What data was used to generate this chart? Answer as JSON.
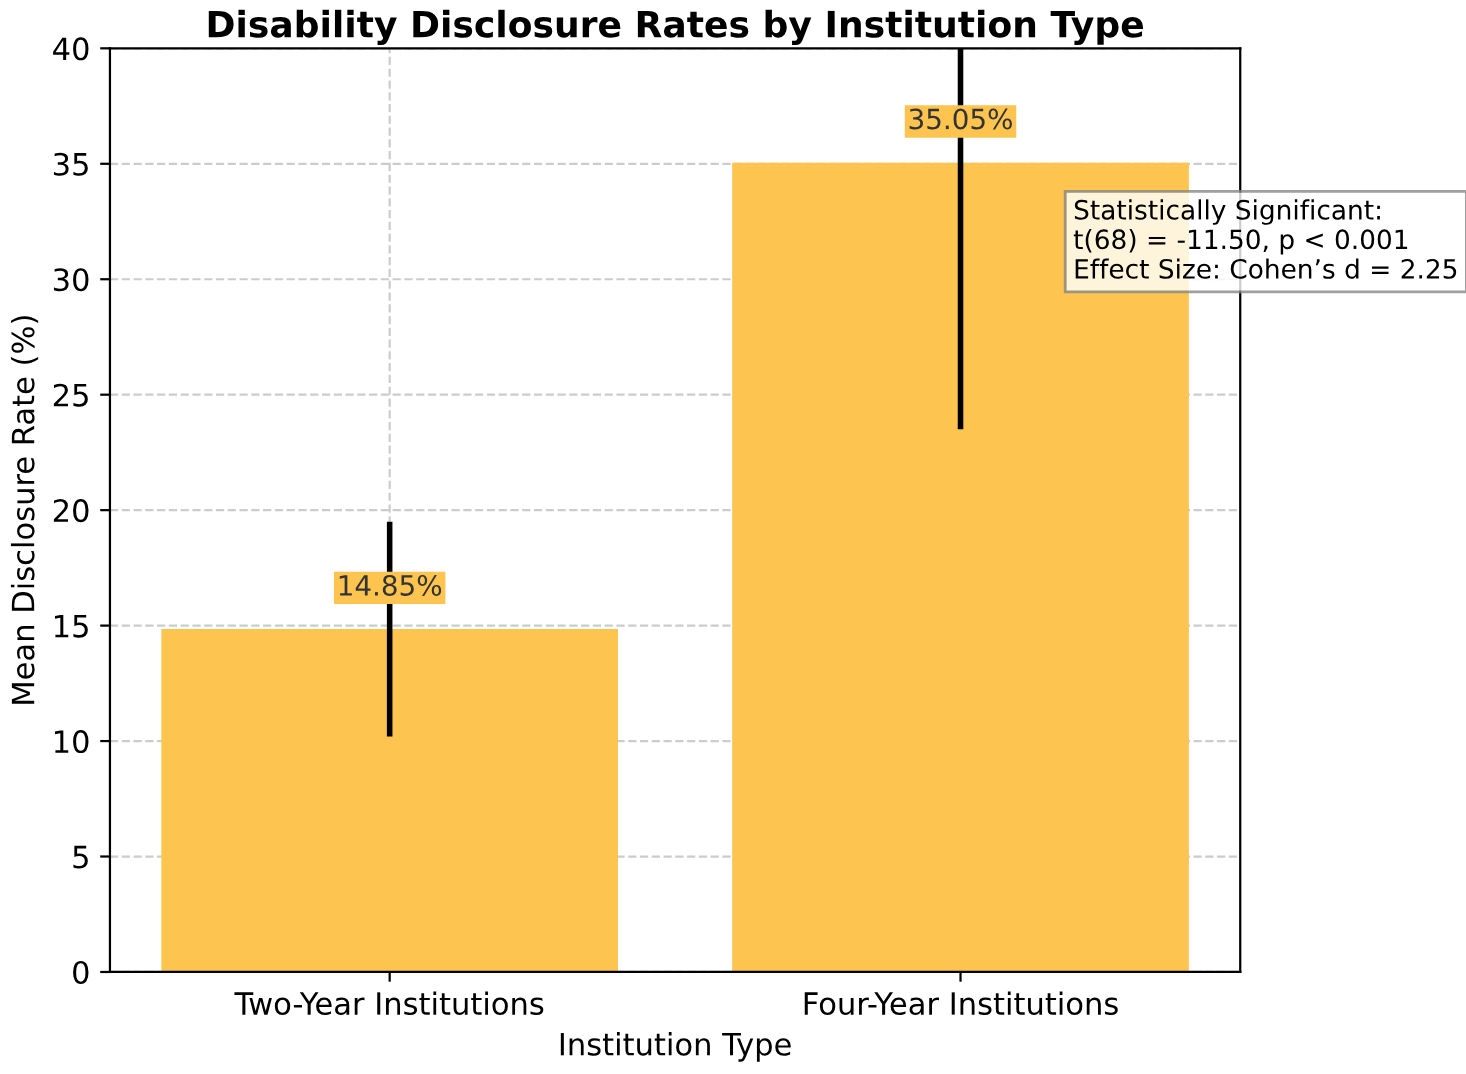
{
  "chart_data": {
    "type": "bar",
    "title": "Disability Disclosure Rates by Institution Type",
    "xlabel": "Institution Type",
    "ylabel": "Mean Disclosure Rate (%)",
    "categories": [
      "Two-Year Institutions",
      "Four-Year Institutions"
    ],
    "values": [
      14.85,
      35.05
    ],
    "color": "#fdc44f",
    "errors": [
      [
        10.2,
        19.5
      ],
      [
        23.5,
        40
      ]
    ],
    "value_labels": [
      "14.85%",
      "35.05%"
    ],
    "ylim": [
      0,
      40
    ],
    "yticks": [
      0,
      5,
      10,
      15,
      20,
      25,
      30,
      35,
      40
    ],
    "grid": true,
    "annotations": [
      "Statistically Significant:\nt(68) = -11.50, p < 0.001\nEffect Size: Cohen’s d = 2.25"
    ]
  }
}
